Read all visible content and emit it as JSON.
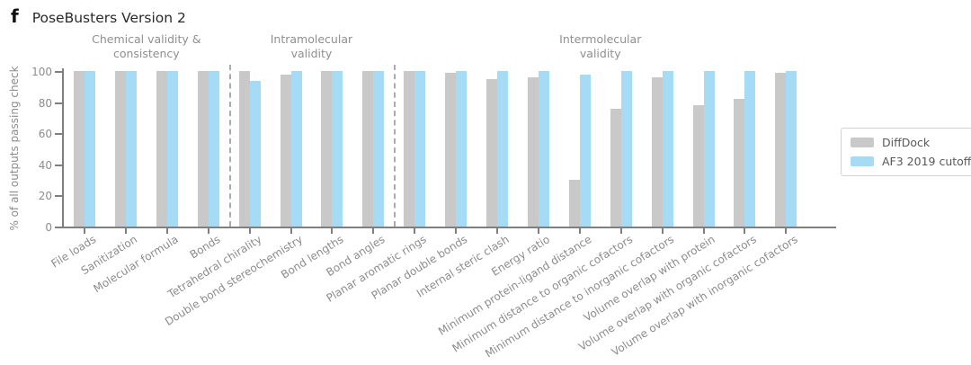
{
  "panel_label": "f",
  "chart_data": {
    "type": "bar",
    "title": "PoseBusters Version 2",
    "ylabel": "% of all outputs passing check",
    "ylim": [
      0,
      100
    ],
    "yticks": [
      0,
      20,
      40,
      60,
      80,
      100
    ],
    "grid": false,
    "legend_position": "right",
    "categories": [
      "File loads",
      "Sanitization",
      "Molecular formula",
      "Bonds",
      "Tetrahedral chirality",
      "Double bond stereochemistry",
      "Bond lengths",
      "Bond angles",
      "Planar aromatic rings",
      "Planar double bonds",
      "Internal steric clash",
      "Energy ratio",
      "Minimum protein-ligand distance",
      "Minimum distance to organic cofactors",
      "Minimum distance to inorganic cofactors",
      "Volume overlap with protein",
      "Volume overlap with organic cofactors",
      "Volume overlap with inorganic cofactors"
    ],
    "series": [
      {
        "name": "DiffDock",
        "color": "#c9c9c9",
        "values": [
          100,
          100,
          100,
          100,
          100,
          98,
          100,
          100,
          100,
          99,
          95,
          96,
          30,
          76,
          96,
          78,
          82,
          99
        ]
      },
      {
        "name": "AF3 2019 cutoff",
        "color": "#a5dbf5",
        "values": [
          100,
          100,
          100,
          100,
          94,
          100,
          100,
          100,
          100,
          100,
          100,
          100,
          98,
          100,
          100,
          100,
          100,
          100
        ]
      }
    ],
    "sections": [
      {
        "label": "Chemical validity &\nconsistency",
        "from": 0,
        "to": 3
      },
      {
        "label": "Intramolecular\nvalidity",
        "from": 4,
        "to": 7
      },
      {
        "label": "Intermolecular\nvalidity",
        "from": 8,
        "to": 17
      }
    ]
  }
}
